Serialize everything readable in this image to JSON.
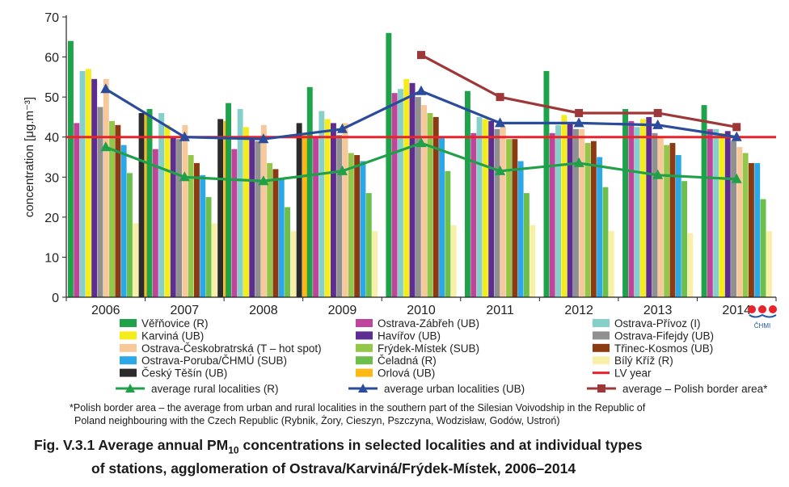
{
  "chart_data": {
    "type": "bar",
    "ylabel": "concentration [μg.m⁻³]",
    "ylim": [
      0,
      70
    ],
    "yticks": [
      0,
      10,
      20,
      30,
      40,
      50,
      60,
      70
    ],
    "grid": false,
    "legend_position": "bottom",
    "categories": [
      "2006",
      "2007",
      "2008",
      "2009",
      "2010",
      "2011",
      "2012",
      "2013",
      "2014"
    ],
    "series": [
      {
        "name": "Věřňovice (R)",
        "color": "#1ea34a",
        "values": [
          64,
          47,
          48.5,
          52.5,
          66,
          51.5,
          56.5,
          47,
          48
        ]
      },
      {
        "name": "Ostrava-Zábřeh (UB)",
        "color": "#c0449a",
        "values": [
          43.5,
          37,
          37,
          40,
          51,
          41,
          41,
          44,
          42
        ]
      },
      {
        "name": "Ostrava-Přívoz (I)",
        "color": "#86d0cc",
        "values": [
          56.5,
          46,
          47,
          46.5,
          52,
          45,
          43,
          42.5,
          42
        ]
      },
      {
        "name": "Karviná (UB)",
        "color": "#f5ec1c",
        "values": [
          57,
          43,
          42.5,
          44.5,
          54.5,
          44.5,
          45.5,
          44.5,
          41
        ]
      },
      {
        "name": "Havířov (UB)",
        "color": "#5d2d91",
        "values": [
          54.5,
          40,
          40,
          43.5,
          53.5,
          44,
          43.5,
          45,
          41.5
        ]
      },
      {
        "name": "Ostrava-Fifejdy (UB)",
        "color": "#909090",
        "values": [
          47.5,
          39.5,
          39,
          40.5,
          50,
          42,
          42,
          41,
          39
        ]
      },
      {
        "name": "Ostrava-Českobratrská (T – hot spot)",
        "color": "#f6c89a",
        "values": [
          54.5,
          43,
          43,
          43.5,
          48,
          42.5,
          42,
          40,
          37.5
        ]
      },
      {
        "name": "Frýdek-Místek (SUB)",
        "color": "#94c64a",
        "values": [
          44,
          35.5,
          33.5,
          36,
          46,
          39.5,
          38.5,
          38,
          36
        ]
      },
      {
        "name": "Třinec-Kosmos (UB)",
        "color": "#8b3a12",
        "values": [
          43,
          33.5,
          32,
          35.5,
          45,
          39.5,
          39,
          38.5,
          33.5
        ]
      },
      {
        "name": "Ostrava-Poruba/ČHMÚ (SUB)",
        "color": "#2aa8e8",
        "values": [
          38,
          30.5,
          29.5,
          34,
          40,
          34,
          35,
          35.5,
          33.5
        ]
      },
      {
        "name": "Čeladná (R)",
        "color": "#6bbf4a",
        "values": [
          31,
          25,
          22.5,
          26,
          31.5,
          26,
          27.5,
          29,
          24.5
        ]
      },
      {
        "name": "Bílý Kříž (R)",
        "color": "#f7f0a6",
        "values": [
          18.5,
          18.5,
          16.5,
          16.5,
          18,
          18,
          16.5,
          16,
          16.5
        ]
      },
      {
        "name": "Český Těšín (UB)",
        "color": "#2b2b2b",
        "values": [
          46,
          44.5,
          43.5,
          null,
          null,
          null,
          null,
          null,
          null
        ]
      },
      {
        "name": "Orlová (UB)",
        "color": "#fdb813",
        "values": [
          46,
          44,
          40.5,
          null,
          null,
          null,
          null,
          null,
          null
        ]
      }
    ],
    "lines": [
      {
        "name": "average rural localities (R)",
        "color": "#21a04a",
        "values": [
          37.5,
          30,
          29,
          31.5,
          38.5,
          31.5,
          33.5,
          30.5,
          29.5
        ]
      },
      {
        "name": "average urban localities (UB)",
        "color": "#2b4c9b",
        "values": [
          52,
          40,
          39.5,
          42,
          51.5,
          43.5,
          43.5,
          43,
          40
        ]
      },
      {
        "name": "average  – Polish border area*",
        "color": "#9e3838",
        "values": [
          null,
          null,
          null,
          null,
          60.5,
          50,
          46,
          46,
          42.5
        ]
      }
    ],
    "reference_line": {
      "name": "LV year",
      "value": 40,
      "color": "#e8232a"
    }
  },
  "footnote": {
    "line1": "*Polish border area – the average from urban and rural localities in the southern part of the Silesian Voivodship in the Republic of",
    "line2": "Poland neighbouring with the Czech Republic (Rybnik, Żory, Cieszyn, Pszczyna, Wodzisław, Godów, Ustroń)"
  },
  "caption": {
    "line1_prefix": "Fig. V.3.1  Average annual PM",
    "line1_sub": "10",
    "line1_suffix": " concentrations in selected localities and at individual types",
    "line2": "of stations, agglomeration of Ostrava/Karviná/Frýdek-Místek, 2006–2014"
  },
  "logo": {
    "text": "ČHMI"
  }
}
